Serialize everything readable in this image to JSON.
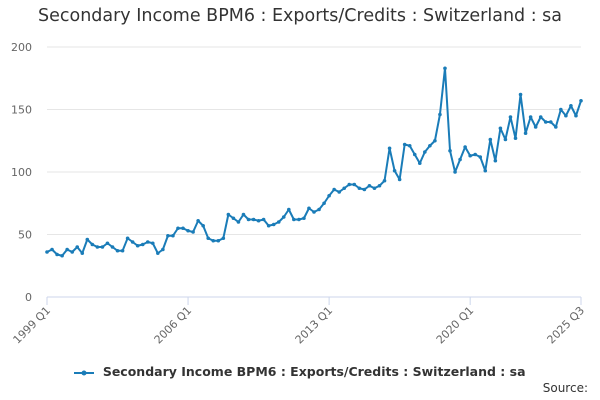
{
  "chart_data": {
    "type": "line",
    "title": "Secondary Income BPM6 : Exports/Credits : Switzerland : sa",
    "xlabel": "",
    "ylabel": "",
    "ylim": [
      0,
      200
    ],
    "yticks": [
      0,
      50,
      100,
      150,
      200
    ],
    "grid": true,
    "legend_position": "bottom",
    "source_label": "Source:",
    "x_start": "1999 Q1",
    "x_end": "2025 Q3",
    "x_ticks": [
      "1999 Q1",
      "2006 Q1",
      "2013 Q1",
      "2020 Q1",
      "2025 Q3"
    ],
    "series": [
      {
        "name": "Secondary Income BPM6 : Exports/Credits : Switzerland : sa",
        "color": "#1a7cb8",
        "values": [
          36,
          38,
          34,
          33,
          38,
          36,
          40,
          35,
          46,
          42,
          40,
          40,
          43,
          40,
          37,
          37,
          47,
          44,
          41,
          42,
          44,
          43,
          35,
          38,
          49,
          49,
          55,
          55,
          53,
          52,
          61,
          57,
          47,
          45,
          45,
          47,
          66,
          63,
          60,
          66,
          62,
          62,
          61,
          62,
          57,
          58,
          60,
          64,
          70,
          62,
          62,
          63,
          71,
          68,
          70,
          75,
          81,
          86,
          84,
          87,
          90,
          90,
          87,
          86,
          89,
          87,
          89,
          93,
          119,
          101,
          94,
          122,
          121,
          114,
          107,
          116,
          121,
          125,
          146,
          183,
          117,
          100,
          110,
          120,
          113,
          114,
          112,
          101,
          126,
          109,
          135,
          126,
          144,
          127,
          162,
          131,
          144,
          136,
          144,
          140,
          140,
          136,
          150,
          145,
          153,
          145,
          157
        ]
      }
    ]
  }
}
